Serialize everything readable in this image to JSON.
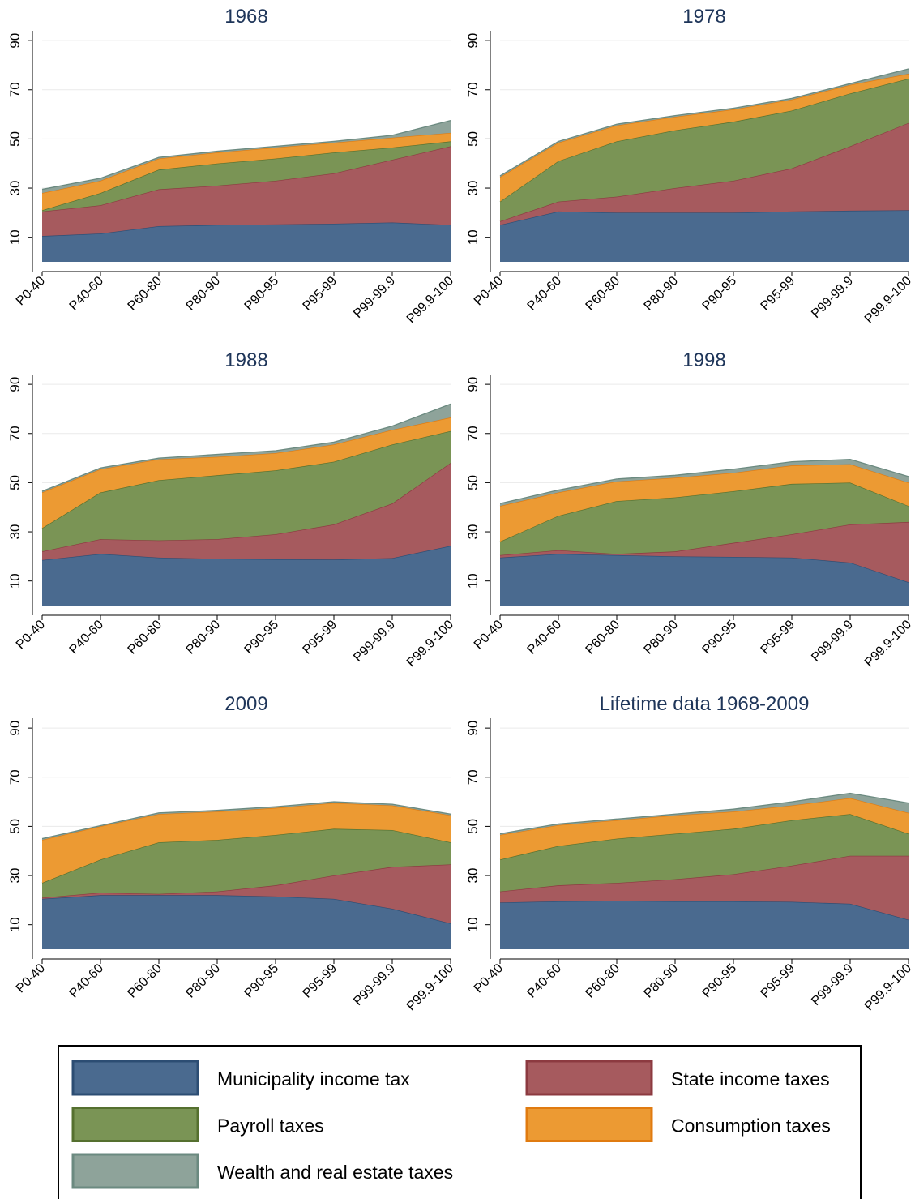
{
  "legend": [
    {
      "name": "Municipality income tax",
      "color": "#4a6a8f",
      "stroke": "#2c4d73"
    },
    {
      "name": "State income taxes",
      "color": "#a65a5e",
      "stroke": "#8c3a40"
    },
    {
      "name": "Payroll taxes",
      "color": "#7a9455",
      "stroke": "#55702f"
    },
    {
      "name": "Consumption taxes",
      "color": "#ec9a33",
      "stroke": "#e07b10"
    },
    {
      "name": "Wealth and real estate taxes",
      "color": "#8ea39a",
      "stroke": "#6b8a80"
    }
  ],
  "chart_data": [
    {
      "type": "area",
      "stacked": true,
      "title": "1968",
      "categories": [
        "P0-40",
        "P40-60",
        "P60-80",
        "P80-90",
        "P90-95",
        "P95-99",
        "P99-99.9",
        "P99.9-100"
      ],
      "series": [
        {
          "values": [
            10.5,
            11.5,
            14.5,
            15,
            15.2,
            15.5,
            16,
            15
          ]
        },
        {
          "values": [
            10,
            11.5,
            15,
            16,
            17.8,
            20.5,
            25.5,
            32
          ]
        },
        {
          "values": [
            0.5,
            5,
            8,
            9,
            9,
            8.5,
            5,
            2
          ]
        },
        {
          "values": [
            7,
            5,
            4.5,
            4.5,
            4.5,
            4,
            4,
            3.5
          ]
        },
        {
          "values": [
            1.5,
            1,
            0.5,
            0.5,
            0.5,
            0.5,
            1,
            5
          ]
        }
      ],
      "ylim": [
        0,
        94
      ],
      "yticks": [
        10,
        30,
        50,
        70,
        90
      ],
      "grid": true
    },
    {
      "type": "area",
      "stacked": true,
      "title": "1978",
      "categories": [
        "P0-40",
        "P40-60",
        "P60-80",
        "P80-90",
        "P90-95",
        "P95-99",
        "P99-99.9",
        "P99.9-100"
      ],
      "series": [
        {
          "values": [
            15,
            20.5,
            20,
            20,
            20,
            20.5,
            20.8,
            21
          ]
        },
        {
          "values": [
            1.5,
            4,
            6.5,
            10,
            13,
            17.5,
            26.2,
            35.5
          ]
        },
        {
          "values": [
            8,
            16.5,
            22.5,
            23.5,
            24,
            23.5,
            21.5,
            18
          ]
        },
        {
          "values": [
            10,
            7.5,
            6.5,
            5.5,
            5,
            4.5,
            3.5,
            2
          ]
        },
        {
          "values": [
            0.5,
            0.5,
            0.5,
            0.5,
            0.5,
            0.5,
            0.5,
            2
          ]
        }
      ],
      "ylim": [
        0,
        94
      ],
      "yticks": [
        10,
        30,
        50,
        70,
        90
      ],
      "grid": true
    },
    {
      "type": "area",
      "stacked": true,
      "title": "1988",
      "categories": [
        "P0-40",
        "P40-60",
        "P60-80",
        "P80-90",
        "P90-95",
        "P95-99",
        "P99-99.9",
        "P99.9-100"
      ],
      "series": [
        {
          "values": [
            18.5,
            21,
            19.5,
            19,
            18.8,
            18.7,
            19.3,
            24.3
          ]
        },
        {
          "values": [
            3.5,
            6,
            7,
            8,
            10.2,
            14.3,
            22.2,
            33.7
          ]
        },
        {
          "values": [
            9.5,
            19,
            24.5,
            26,
            26,
            25.5,
            24,
            13
          ]
        },
        {
          "values": [
            14.5,
            9.5,
            8.5,
            7.5,
            7,
            7,
            6,
            5.5
          ]
        },
        {
          "values": [
            0.5,
            0.5,
            0.5,
            1,
            1,
            1,
            1.5,
            5.5
          ]
        }
      ],
      "ylim": [
        0,
        94
      ],
      "yticks": [
        10,
        30,
        50,
        70,
        90
      ],
      "grid": true
    },
    {
      "type": "area",
      "stacked": true,
      "title": "1998",
      "categories": [
        "P0-40",
        "P40-60",
        "P60-80",
        "P80-90",
        "P90-95",
        "P95-99",
        "P99-99.9",
        "P99.9-100"
      ],
      "series": [
        {
          "values": [
            19.5,
            21,
            20.5,
            20,
            19.8,
            19.5,
            17.5,
            9.5
          ]
        },
        {
          "values": [
            1,
            1.5,
            0.5,
            2,
            5.7,
            9.5,
            15.5,
            24.5
          ]
        },
        {
          "values": [
            5.5,
            14,
            21.5,
            22,
            21,
            20.5,
            17,
            6.5
          ]
        },
        {
          "values": [
            14.5,
            9.5,
            8,
            8,
            7.5,
            7.5,
            7.5,
            9.5
          ]
        },
        {
          "values": [
            1,
            1,
            1,
            1,
            1.5,
            1.5,
            2,
            2.5
          ]
        }
      ],
      "ylim": [
        0,
        94
      ],
      "yticks": [
        10,
        30,
        50,
        70,
        90
      ],
      "grid": true
    },
    {
      "type": "area",
      "stacked": true,
      "title": "2009",
      "categories": [
        "P0-40",
        "P40-60",
        "P60-80",
        "P80-90",
        "P90-95",
        "P95-99",
        "P99-99.9",
        "P99.9-100"
      ],
      "series": [
        {
          "values": [
            20.5,
            22,
            22,
            22,
            21.5,
            20.5,
            16.5,
            10.5
          ]
        },
        {
          "values": [
            0.5,
            1,
            0.5,
            1.5,
            4.5,
            9.5,
            17,
            24
          ]
        },
        {
          "values": [
            6,
            13.5,
            21,
            21,
            20.5,
            19,
            15,
            9
          ]
        },
        {
          "values": [
            17.5,
            13.5,
            11.5,
            11.5,
            11,
            10.5,
            10,
            11
          ]
        },
        {
          "values": [
            0.5,
            0.3,
            0.5,
            0.5,
            0.5,
            0.5,
            0.5,
            0.5
          ]
        }
      ],
      "ylim": [
        0,
        94
      ],
      "yticks": [
        10,
        30,
        50,
        70,
        90
      ],
      "grid": true
    },
    {
      "type": "area",
      "stacked": true,
      "title": "Lifetime data 1968-2009",
      "categories": [
        "P0-40",
        "P40-60",
        "P60-80",
        "P80-90",
        "P90-95",
        "P95-99",
        "P99-99.9",
        "P99.9-100"
      ],
      "series": [
        {
          "values": [
            19,
            19.5,
            19.7,
            19.5,
            19.5,
            19.3,
            18.5,
            12
          ]
        },
        {
          "values": [
            4.5,
            6.5,
            7.3,
            9,
            11,
            14.7,
            19.5,
            26
          ]
        },
        {
          "values": [
            13,
            16,
            18,
            18.5,
            18.5,
            18.5,
            17,
            9
          ]
        },
        {
          "values": [
            10,
            8.5,
            7.5,
            7.5,
            7,
            6,
            6.5,
            8.5
          ]
        },
        {
          "values": [
            0.5,
            0.5,
            0.5,
            0.5,
            1,
            1.5,
            2,
            4
          ]
        }
      ],
      "ylim": [
        0,
        94
      ],
      "yticks": [
        10,
        30,
        50,
        70,
        90
      ],
      "grid": true
    }
  ]
}
